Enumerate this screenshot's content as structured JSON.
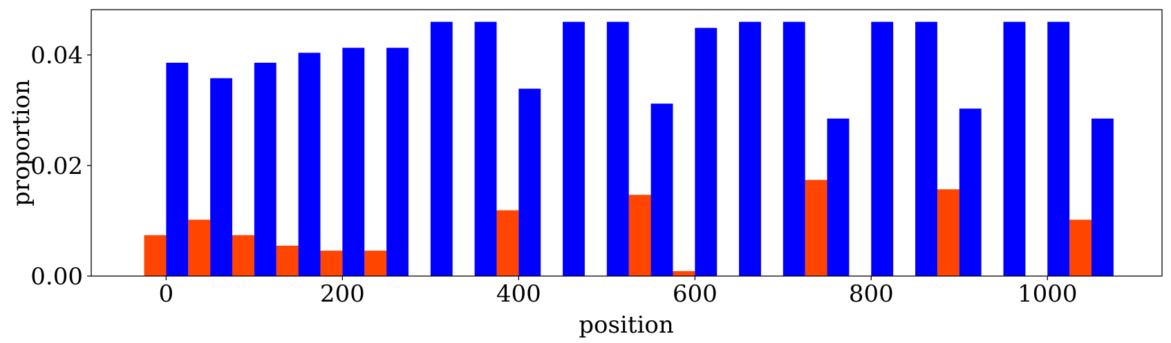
{
  "chart_data": {
    "type": "bar",
    "title": "",
    "xlabel": "position",
    "ylabel": "proportion",
    "xlim": [
      -85,
      1130
    ],
    "ylim": [
      0,
      0.0482
    ],
    "bar_width": 25,
    "x_ticks": [
      0,
      200,
      400,
      600,
      800,
      1000
    ],
    "x_tick_labels": [
      "0",
      "200",
      "400",
      "600",
      "800",
      "1000"
    ],
    "y_ticks": [
      0.0,
      0.02,
      0.04
    ],
    "y_tick_labels": [
      "0.00",
      "0.02",
      "0.04"
    ],
    "grid": false,
    "x": [
      0,
      50,
      100,
      150,
      200,
      250,
      300,
      350,
      400,
      450,
      500,
      550,
      600,
      650,
      700,
      750,
      800,
      850,
      900,
      950,
      1000,
      1050
    ],
    "series": [
      {
        "color": "#ff4500",
        "offset": -12.5,
        "values": [
          0.0074,
          0.0102,
          0.0074,
          0.0055,
          0.0046,
          0.0046,
          0,
          0,
          0.0119,
          0,
          0,
          0.0147,
          0.0009,
          0,
          0,
          0.0174,
          0,
          0,
          0.0157,
          0,
          0,
          0.0102
        ]
      },
      {
        "color": "#0000ff",
        "offset": 12.5,
        "values": [
          0.0386,
          0.0358,
          0.0386,
          0.0404,
          0.0413,
          0.0413,
          0.046,
          0.046,
          0.0339,
          0.046,
          0.046,
          0.0312,
          0.0449,
          0.046,
          0.046,
          0.0285,
          0.046,
          0.046,
          0.0303,
          0.046,
          0.046,
          0.0285
        ]
      }
    ]
  }
}
